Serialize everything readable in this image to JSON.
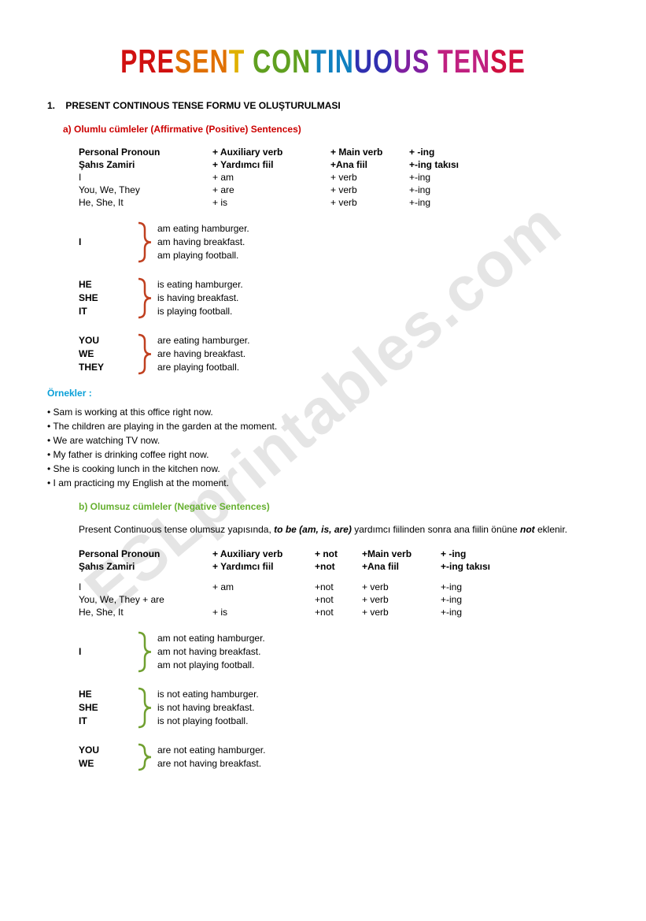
{
  "watermark": "ESLprintables.com",
  "main_title": "PRESENT CONTINUOUS TENSE",
  "title_gradient_colors": [
    "#d01010",
    "#e07000",
    "#e0b000",
    "#60a020",
    "#1080c0",
    "#3030b0",
    "#8020a0",
    "#c02080",
    "#d01040"
  ],
  "section1": {
    "num": "1.",
    "heading": "PRESENT CONTINOUS TENSE FORMU VE OLUŞTURULMASI"
  },
  "sub_a": "a)  Olumlu cümleler (Affirmative (Positive) Sentences)",
  "sub_b": "b)  Olumsuz cümleler (Negative Sentences)",
  "table_aff": {
    "headers_en": [
      "Personal Pronoun",
      "+ Auxiliary verb",
      "+ Main verb",
      "+ -ing"
    ],
    "headers_tr": [
      "Şahıs Zamiri",
      "+ Yardımcı fiil",
      "+Ana fiil",
      "+-ing takısı"
    ],
    "rows": [
      [
        "I",
        "+ am",
        "+ verb",
        "+-ing"
      ],
      [
        "You, We, They",
        "+ are",
        "+ verb",
        "+-ing"
      ],
      [
        "He, She, It",
        "+ is",
        "+ verb",
        "+-ing"
      ]
    ]
  },
  "pronoun_groups_aff": [
    {
      "pronouns": [
        "I"
      ],
      "color": "#c04020",
      "sents": [
        "am eating hamburger.",
        "am having breakfast.",
        "am playing football."
      ]
    },
    {
      "pronouns": [
        "HE",
        "SHE",
        "IT"
      ],
      "color": "#c04020",
      "sents": [
        "is eating hamburger.",
        "is having breakfast.",
        "is playing football."
      ]
    },
    {
      "pronouns": [
        "YOU",
        "WE",
        "THEY"
      ],
      "color": "#c04020",
      "sents": [
        "are eating hamburger.",
        "are having breakfast.",
        "are playing football."
      ]
    }
  ],
  "examples_heading": "Örnekler :",
  "examples": [
    "• Sam is working at this office right now.",
    "• The children are playing in the garden at the moment.",
    "• We are watching TV now.",
    "• My father is drinking coffee right now.",
    "• She is cooking lunch in the kitchen now.",
    "• I am practicing my English at the moment."
  ],
  "neg_desc_pre": "Present Continuous tense olumsuz yapısında, ",
  "neg_desc_bold": "to be (am, is, are)",
  "neg_desc_mid": " yardımcı fiilinden sonra ana fiilin önüne ",
  "neg_desc_not": "not",
  "neg_desc_post": " eklenir.",
  "table_neg": {
    "headers_en": [
      "Personal Pronoun",
      "+ Auxiliary verb",
      "+ not",
      "+Main verb",
      "+ -ing"
    ],
    "headers_tr": [
      "Şahıs Zamiri",
      "+ Yardımcı fiil",
      "+not",
      "+Ana fiil",
      "+-ing takısı"
    ],
    "rows": [
      [
        "I",
        "+ am",
        "+not",
        "+ verb",
        "+-ing"
      ],
      [
        "You, We, They  + are",
        "",
        "+not",
        "+ verb",
        "+-ing"
      ],
      [
        "He, She, It",
        "+ is",
        "+not",
        "+ verb",
        "+-ing"
      ]
    ]
  },
  "pronoun_groups_neg": [
    {
      "pronouns": [
        "I"
      ],
      "color": "#70a030",
      "sents": [
        "am not eating hamburger.",
        "am not having breakfast.",
        "am not playing football."
      ]
    },
    {
      "pronouns": [
        "HE",
        "SHE",
        "IT"
      ],
      "color": "#70a030",
      "sents": [
        "is not eating hamburger.",
        "is not having breakfast.",
        "is not playing football."
      ]
    },
    {
      "pronouns": [
        "YOU",
        "WE"
      ],
      "color": "#70a030",
      "sents": [
        "are not eating hamburger.",
        "are not having breakfast."
      ]
    }
  ]
}
